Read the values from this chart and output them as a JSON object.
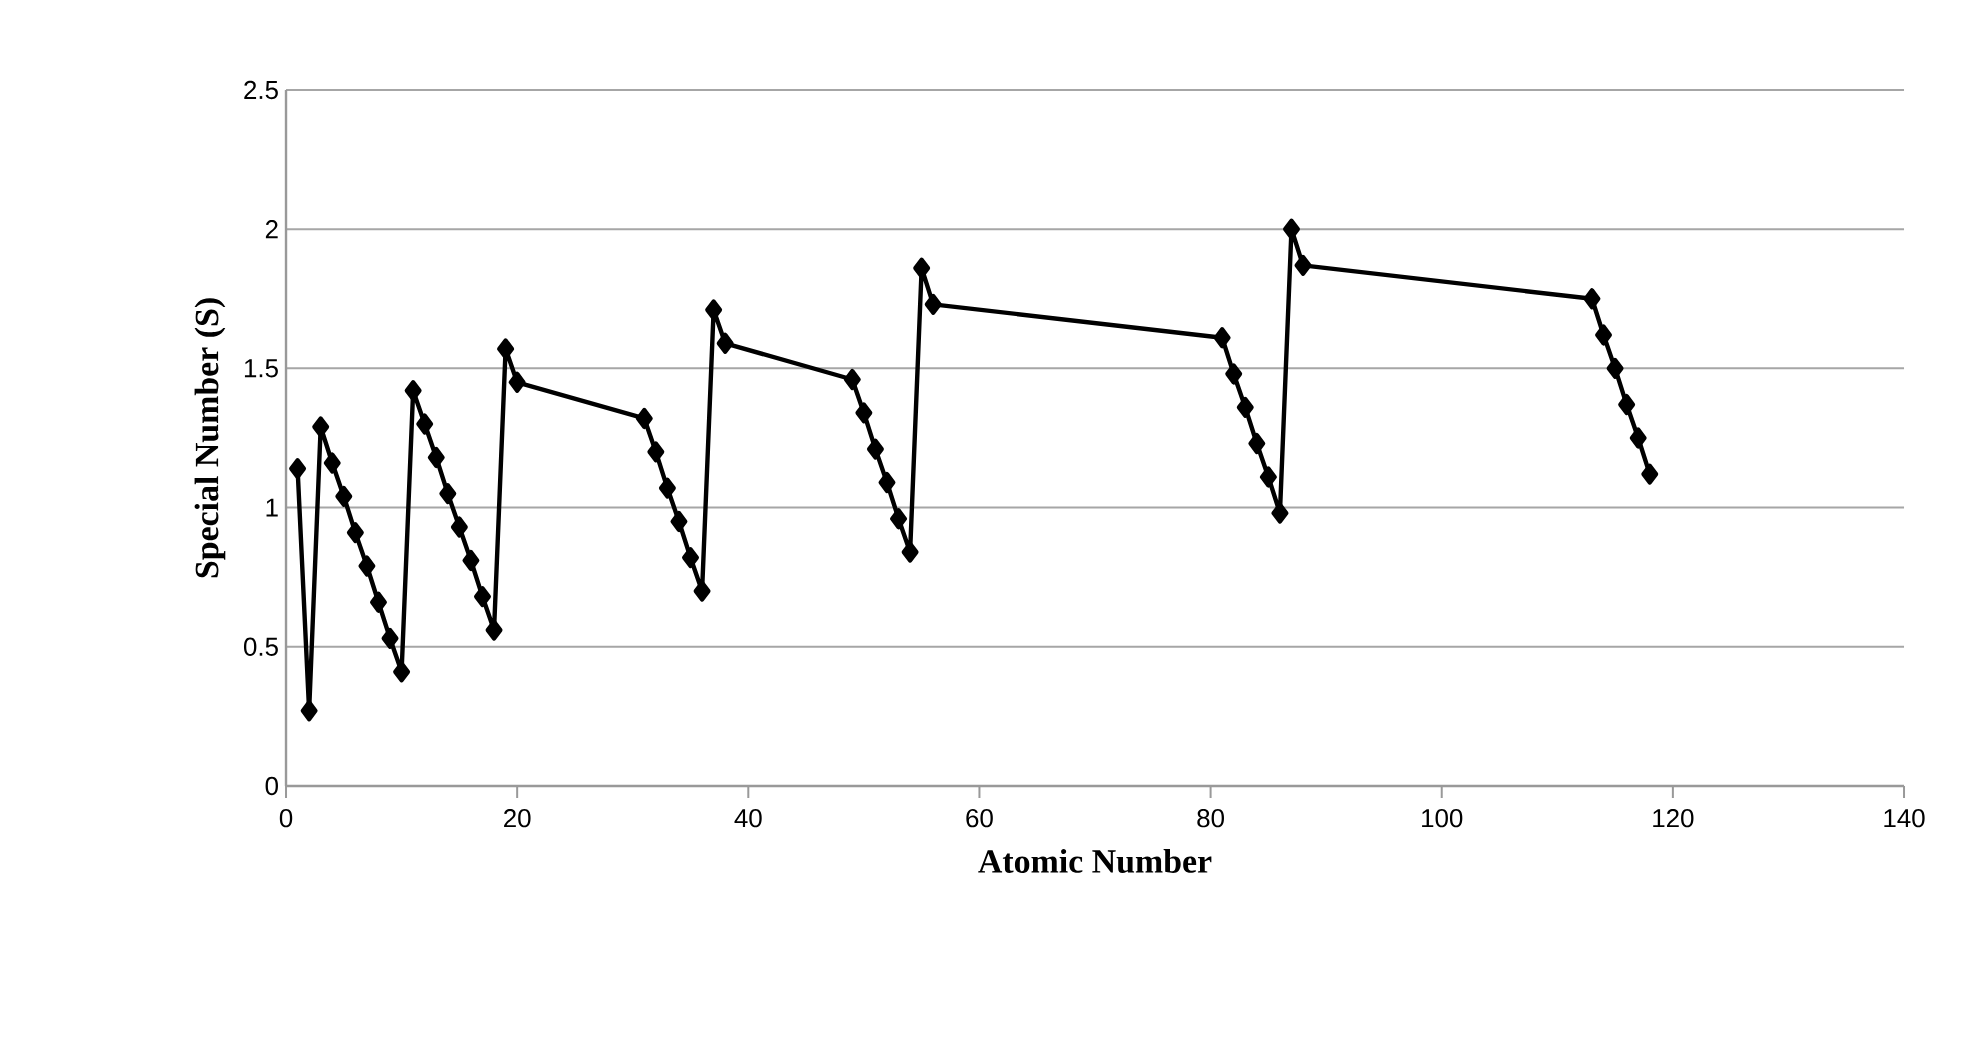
{
  "chart_data": {
    "type": "line",
    "xlabel": "Atomic Number",
    "ylabel": "Special Number (S)",
    "x": [
      1,
      2,
      3,
      4,
      5,
      6,
      7,
      8,
      9,
      10,
      11,
      12,
      13,
      14,
      15,
      16,
      17,
      18,
      19,
      20,
      31,
      32,
      33,
      34,
      35,
      36,
      37,
      38,
      49,
      50,
      51,
      52,
      53,
      54,
      55,
      56,
      81,
      82,
      83,
      84,
      85,
      86,
      87,
      88,
      113,
      114,
      115,
      116,
      117,
      118
    ],
    "values": [
      1.14,
      0.27,
      1.29,
      1.16,
      1.04,
      0.91,
      0.79,
      0.66,
      0.53,
      0.41,
      1.42,
      1.3,
      1.18,
      1.05,
      0.93,
      0.81,
      0.68,
      0.56,
      1.57,
      1.45,
      1.32,
      1.2,
      1.07,
      0.95,
      0.82,
      0.7,
      1.71,
      1.59,
      1.46,
      1.34,
      1.21,
      1.09,
      0.96,
      0.84,
      1.86,
      1.73,
      1.61,
      1.48,
      1.36,
      1.23,
      1.11,
      0.98,
      2.0,
      1.87,
      1.75,
      1.62,
      1.5,
      1.37,
      1.25,
      1.12
    ],
    "color": "#000000",
    "xlim": [
      0,
      140
    ],
    "xticks": [
      0,
      20,
      40,
      60,
      80,
      100,
      120,
      140
    ],
    "ylim": [
      0,
      2.5
    ],
    "yticks": [
      0,
      0.5,
      1,
      1.5,
      2,
      2.5
    ],
    "grid": "y",
    "marker": "diamond",
    "line_style": "solid"
  }
}
